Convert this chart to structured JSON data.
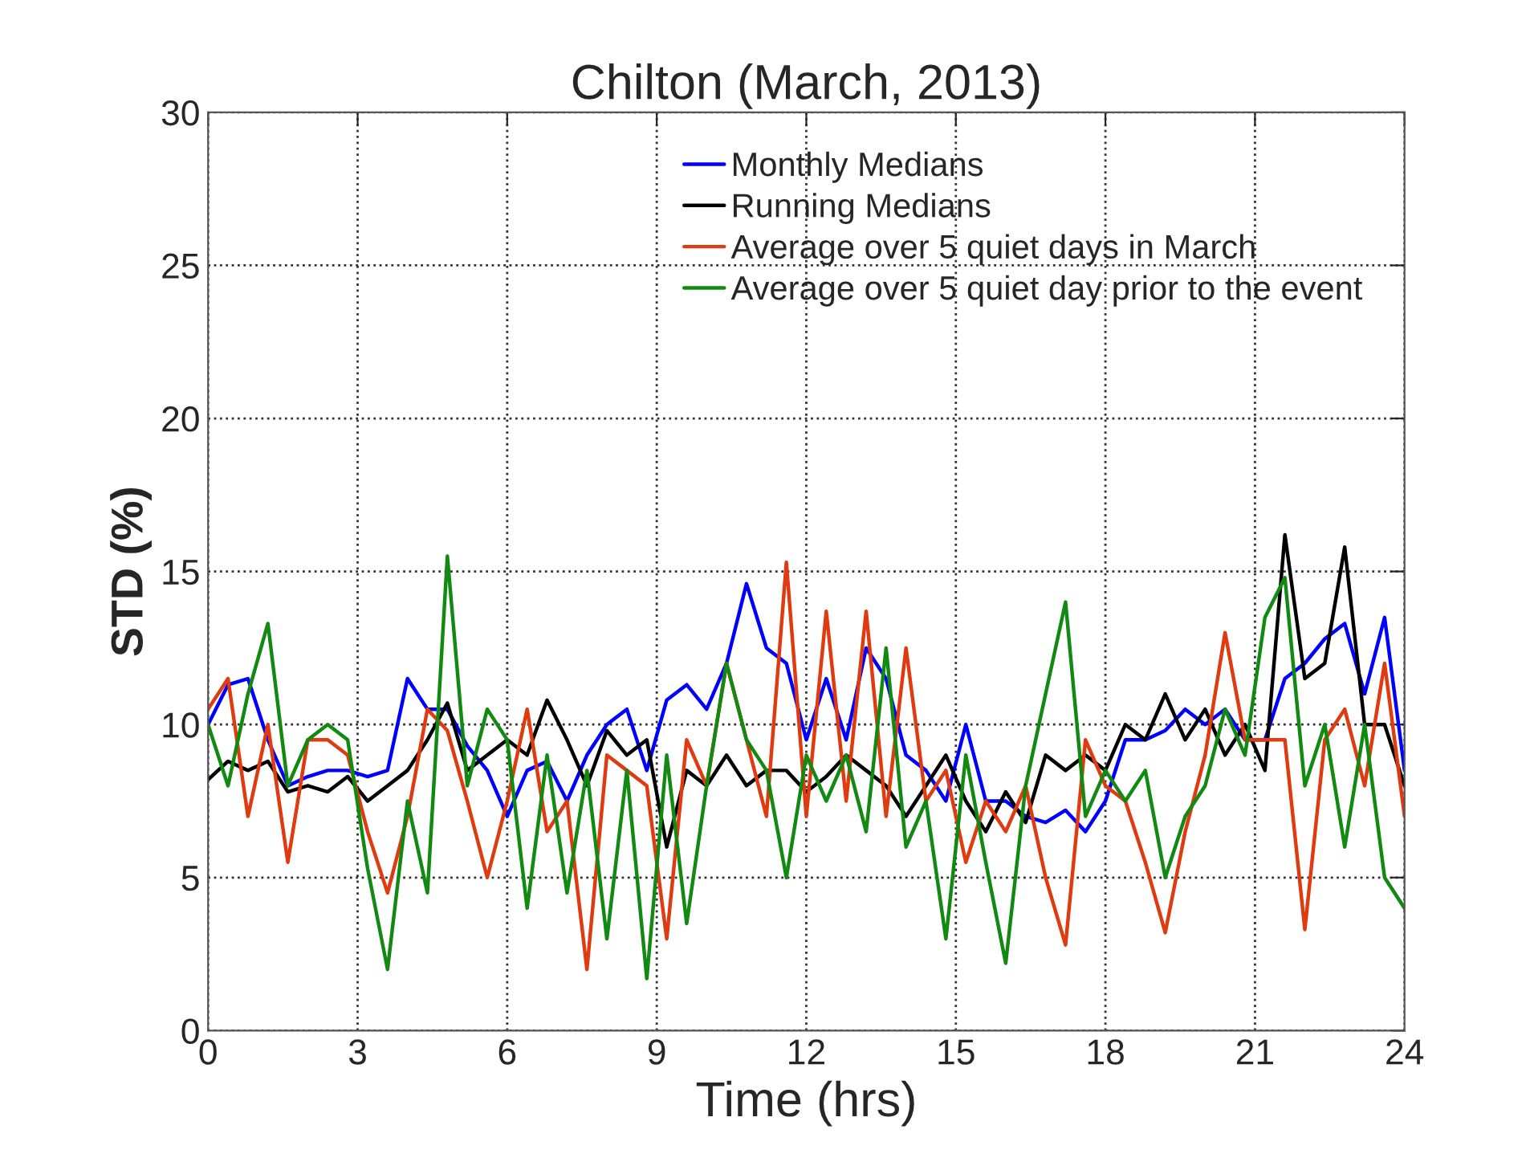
{
  "chart_data": {
    "type": "line",
    "title": "Chilton (March, 2013)",
    "xlabel": "Time (hrs)",
    "ylabel": "STD (%)",
    "x": [
      0,
      0.4,
      0.8,
      1.2,
      1.6,
      2.0,
      2.4,
      2.8,
      3.2,
      3.6,
      4.0,
      4.4,
      4.8,
      5.2,
      5.6,
      6.0,
      6.4,
      6.8,
      7.2,
      7.6,
      8.0,
      8.4,
      8.8,
      9.2,
      9.6,
      10.0,
      10.4,
      10.8,
      11.2,
      11.6,
      12.0,
      12.4,
      12.8,
      13.2,
      13.6,
      14.0,
      14.4,
      14.8,
      15.2,
      15.6,
      16.0,
      16.4,
      16.8,
      17.2,
      17.6,
      18.0,
      18.4,
      18.8,
      19.2,
      19.6,
      20.0,
      20.4,
      20.8,
      21.2,
      21.6,
      22.0,
      22.4,
      22.8,
      23.2,
      23.6,
      24.0
    ],
    "series": [
      {
        "name": "Monthly Medians",
        "color": "#0000ff",
        "values": [
          10.0,
          11.3,
          11.5,
          9.5,
          8.0,
          8.3,
          8.5,
          8.5,
          8.3,
          8.5,
          11.5,
          10.5,
          10.5,
          9.3,
          8.5,
          7.0,
          8.5,
          8.8,
          7.5,
          9.0,
          10.0,
          10.5,
          8.5,
          10.8,
          11.3,
          10.5,
          12.0,
          14.6,
          12.5,
          12.0,
          9.5,
          11.5,
          9.5,
          12.5,
          11.5,
          9.0,
          8.5,
          7.5,
          10.0,
          7.5,
          7.5,
          7.0,
          6.8,
          7.2,
          6.5,
          7.5,
          9.5,
          9.5,
          9.8,
          10.5,
          10.0,
          10.5,
          9.5,
          9.5,
          11.5,
          12.0,
          12.8,
          13.3,
          11.0,
          13.5,
          8.5
        ]
      },
      {
        "name": "Running Medians",
        "color": "#000000",
        "values": [
          8.2,
          8.8,
          8.5,
          8.8,
          7.8,
          8.0,
          7.8,
          8.3,
          7.5,
          8.0,
          8.5,
          9.5,
          10.7,
          8.5,
          9.0,
          9.5,
          9.0,
          10.8,
          9.5,
          8.0,
          9.8,
          9.0,
          9.5,
          6.0,
          8.5,
          8.0,
          9.0,
          8.0,
          8.5,
          8.5,
          7.8,
          8.3,
          9.0,
          8.5,
          8.0,
          7.0,
          8.0,
          9.0,
          7.5,
          6.5,
          7.8,
          6.8,
          9.0,
          8.5,
          9.0,
          8.5,
          10.0,
          9.5,
          11.0,
          9.5,
          10.5,
          9.0,
          10.0,
          8.5,
          16.2,
          11.5,
          12.0,
          15.8,
          10.0,
          10.0,
          8.0
        ]
      },
      {
        "name": "Average over 5 quiet days in March",
        "color": "#e03a10",
        "values": [
          10.5,
          11.5,
          7.0,
          10.0,
          5.5,
          9.5,
          9.5,
          9.0,
          6.5,
          4.5,
          7.0,
          10.5,
          9.8,
          7.5,
          5.0,
          7.5,
          10.5,
          6.5,
          7.5,
          2.0,
          9.0,
          8.5,
          8.0,
          3.0,
          9.5,
          8.0,
          12.0,
          9.5,
          7.0,
          15.3,
          7.0,
          13.7,
          7.5,
          13.7,
          7.0,
          12.5,
          7.5,
          8.5,
          5.5,
          7.5,
          6.5,
          8.0,
          5.0,
          2.8,
          9.5,
          8.0,
          7.5,
          5.5,
          3.2,
          6.5,
          9.0,
          13.0,
          9.5,
          9.5,
          9.5,
          3.3,
          9.5,
          10.5,
          8.0,
          12.0,
          7.0
        ]
      },
      {
        "name": "Average over 5 quiet day prior to the event",
        "color": "#128a12",
        "values": [
          10.0,
          8.0,
          11.0,
          13.3,
          8.0,
          9.5,
          10.0,
          9.5,
          5.3,
          2.0,
          7.5,
          4.5,
          15.5,
          8.0,
          10.5,
          9.5,
          4.0,
          9.0,
          4.5,
          8.5,
          3.0,
          8.5,
          1.7,
          9.0,
          3.5,
          8.0,
          12.0,
          9.5,
          8.5,
          5.0,
          9.0,
          7.5,
          9.0,
          6.5,
          12.5,
          6.0,
          7.5,
          3.0,
          9.0,
          5.5,
          2.2,
          8.0,
          11.0,
          14.0,
          7.0,
          8.5,
          7.5,
          8.5,
          5.0,
          7.0,
          8.0,
          10.5,
          9.0,
          13.5,
          14.8,
          8.0,
          10.0,
          6.0,
          10.0,
          5.0,
          4.0
        ]
      }
    ],
    "xlim": [
      0,
      24
    ],
    "xticks": [
      0,
      3,
      6,
      9,
      12,
      15,
      18,
      21,
      24
    ],
    "ylim": [
      0,
      30
    ],
    "yticks": [
      0,
      5,
      10,
      15,
      20,
      25,
      30
    ],
    "grid": true,
    "legend": "top right",
    "line_style": "solid"
  }
}
